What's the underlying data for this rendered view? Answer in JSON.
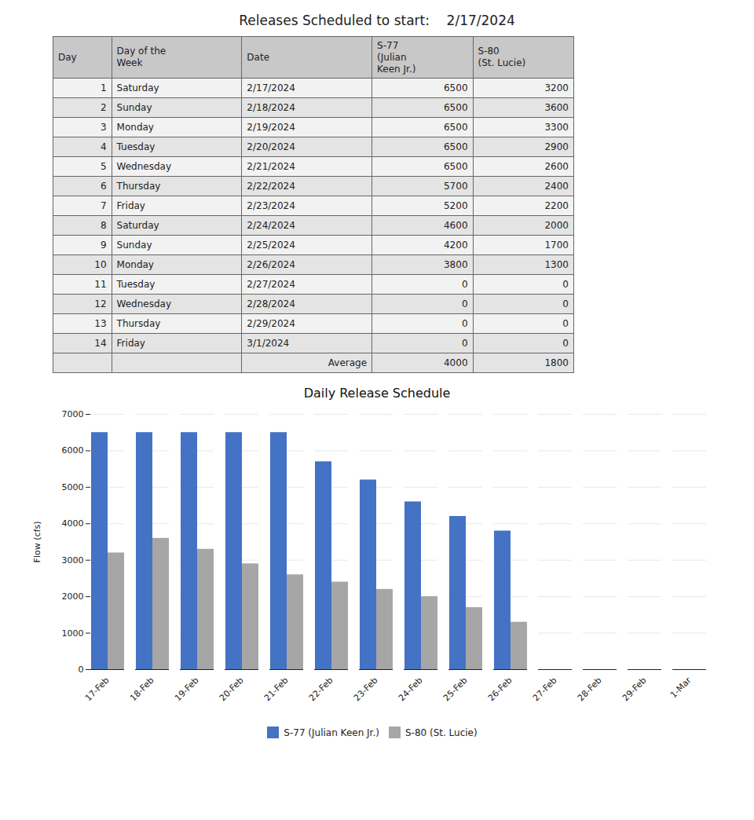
{
  "chart_data": [
    {
      "type": "table",
      "title": "Releases Scheduled to start:    2/17/2024",
      "columns": [
        "Day",
        "Day of the\nWeek",
        "Date",
        "S-77\n(Julian\nKeen Jr.)",
        "S-80\n(St. Lucie)"
      ],
      "rows": [
        [
          1,
          "Saturday",
          "2/17/2024",
          6500,
          3200
        ],
        [
          2,
          "Sunday",
          "2/18/2024",
          6500,
          3600
        ],
        [
          3,
          "Monday",
          "2/19/2024",
          6500,
          3300
        ],
        [
          4,
          "Tuesday",
          "2/20/2024",
          6500,
          2900
        ],
        [
          5,
          "Wednesday",
          "2/21/2024",
          6500,
          2600
        ],
        [
          6,
          "Thursday",
          "2/22/2024",
          5700,
          2400
        ],
        [
          7,
          "Friday",
          "2/23/2024",
          5200,
          2200
        ],
        [
          8,
          "Saturday",
          "2/24/2024",
          4600,
          2000
        ],
        [
          9,
          "Sunday",
          "2/25/2024",
          4200,
          1700
        ],
        [
          10,
          "Monday",
          "2/26/2024",
          3800,
          1300
        ],
        [
          11,
          "Tuesday",
          "2/27/2024",
          0,
          0
        ],
        [
          12,
          "Wednesday",
          "2/28/2024",
          0,
          0
        ],
        [
          13,
          "Thursday",
          "2/29/2024",
          0,
          0
        ],
        [
          14,
          "Friday",
          "3/1/2024",
          0,
          0
        ]
      ],
      "footer": [
        null,
        null,
        "Average",
        4000,
        1800
      ]
    },
    {
      "type": "bar",
      "title": "Daily Release Schedule",
      "categories": [
        "17-Feb",
        "18-Feb",
        "19-Feb",
        "20-Feb",
        "21-Feb",
        "22-Feb",
        "23-Feb",
        "24-Feb",
        "25-Feb",
        "26-Feb",
        "27-Feb",
        "28-Feb",
        "29-Feb",
        "1-Mar"
      ],
      "series": [
        {
          "name": "S-77 (Julian Keen Jr.)",
          "color": "#4472c4",
          "values": [
            6500,
            6500,
            6500,
            6500,
            6500,
            5700,
            5200,
            4600,
            4200,
            3800,
            0,
            0,
            0,
            0
          ]
        },
        {
          "name": "S-80 (St. Lucie)",
          "color": "#a6a6a6",
          "values": [
            3200,
            3600,
            3300,
            2900,
            2600,
            2400,
            2200,
            2000,
            1700,
            1300,
            0,
            0,
            0,
            0
          ]
        }
      ],
      "ylabel": "Flow (cfs)",
      "ylim": [
        0,
        7000
      ],
      "yticks": [
        0,
        1000,
        2000,
        3000,
        4000,
        5000,
        6000,
        7000
      ],
      "grid": true,
      "legend": "bottom"
    }
  ]
}
